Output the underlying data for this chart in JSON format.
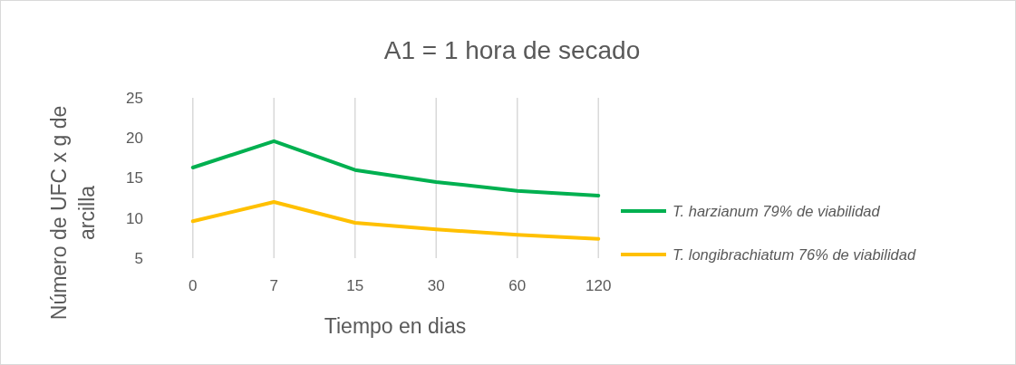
{
  "chart_data": {
    "type": "line",
    "title": "A1 = 1 hora de secado",
    "xlabel": "Tiempo en dias",
    "ylabel": "Número de UFC x g de arcilla",
    "categories": [
      "0",
      "7",
      "15",
      "30",
      "60",
      "120"
    ],
    "ylim": [
      5,
      25
    ],
    "yticks": [
      5,
      10,
      15,
      20,
      25
    ],
    "grid": "x",
    "legend": "right",
    "marker": "none",
    "line_style": "solid",
    "series": [
      {
        "name": "T. harzianum 79% de viabilidad",
        "color": "#00b050",
        "values": [
          16.3,
          19.6,
          16.0,
          14.5,
          13.4,
          12.8
        ]
      },
      {
        "name": "T. longibrachiatum 76% de viabilidad",
        "color": "#ffc000",
        "values": [
          9.6,
          12.0,
          9.4,
          8.6,
          7.9,
          7.4
        ]
      }
    ]
  }
}
